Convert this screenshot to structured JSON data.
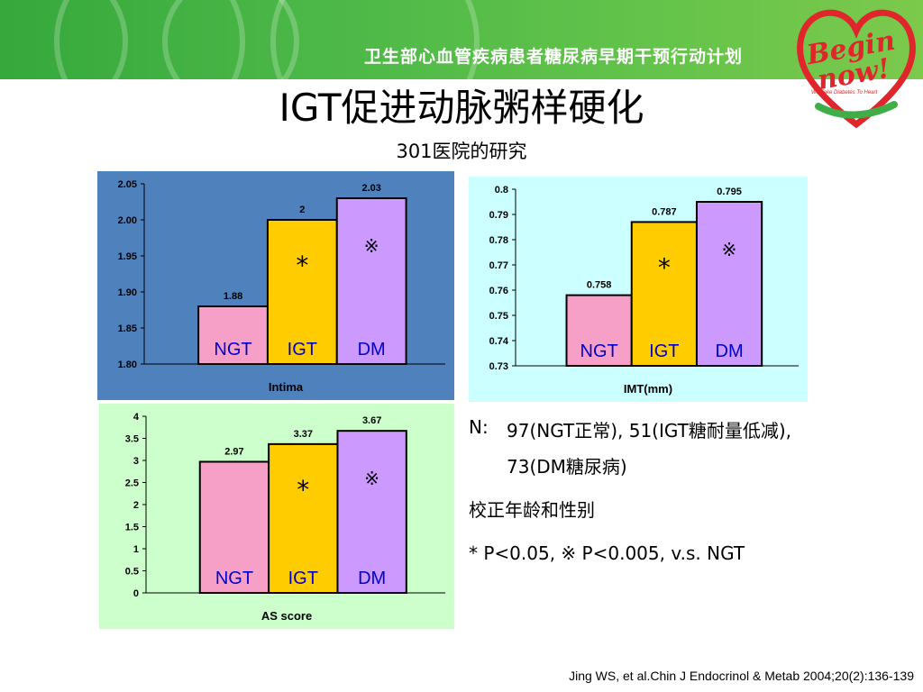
{
  "banner": {
    "text": "卫生部心血管疾病患者糖尿病早期干预行动计划"
  },
  "logo": {
    "line1": "Begin",
    "line2": "now!",
    "tagline": "We Take Diabetes To Heart"
  },
  "title": "IGT促进动脉粥样硬化",
  "subtitle": "301医院的研究",
  "colors": {
    "ngt": "#f6a0c8",
    "igt": "#ffcc00",
    "dm": "#cc99ff",
    "banner": "#4cb848"
  },
  "chart_data": [
    {
      "type": "bar",
      "xlabel": "Intima",
      "categories": [
        "NGT",
        "IGT",
        "DM"
      ],
      "values": [
        1.88,
        2,
        2.03
      ],
      "value_labels": [
        "1.88",
        "2",
        "2.03"
      ],
      "ylim": [
        1.8,
        2.05
      ],
      "yticks": [
        "2.05",
        "2.00",
        "1.95",
        "1.90",
        "1.85",
        "1.80"
      ],
      "markers": [
        "",
        "*",
        "※"
      ],
      "background": "#4f81bd"
    },
    {
      "type": "bar",
      "xlabel": "IMT(mm)",
      "categories": [
        "NGT",
        "IGT",
        "DM"
      ],
      "values": [
        0.758,
        0.787,
        0.795
      ],
      "value_labels": [
        "0.758",
        "0.787",
        "0.795"
      ],
      "ylim": [
        0.73,
        0.8
      ],
      "yticks": [
        "0.8",
        "0.79",
        "0.78",
        "0.77",
        "0.76",
        "0.75",
        "0.74",
        "0.73"
      ],
      "markers": [
        "",
        "*",
        "※"
      ],
      "background": "#ccffff"
    },
    {
      "type": "bar",
      "xlabel": "AS score",
      "categories": [
        "NGT",
        "IGT",
        "DM"
      ],
      "values": [
        2.97,
        3.37,
        3.67
      ],
      "value_labels": [
        "2.97",
        "3.37",
        "3.67"
      ],
      "ylim": [
        0,
        4
      ],
      "yticks": [
        "4",
        "3.5",
        "3",
        "2.5",
        "2",
        "1.5",
        "1",
        "0.5",
        "0"
      ],
      "markers": [
        "",
        "*",
        "※"
      ],
      "background": "#ccffcc"
    }
  ],
  "notes": {
    "n_label": "N:",
    "n_line1": "97(NGT正常), 51(IGT糖耐量低减),",
    "n_line2": "73(DM糖尿病)",
    "adjust": "校正年龄和性别",
    "significance": "* P<0.05, ※ P<0.005, v.s. NGT"
  },
  "citation": "Jing WS, et al.Chin J Endocrinol & Metab 2004;20(2):136-139"
}
